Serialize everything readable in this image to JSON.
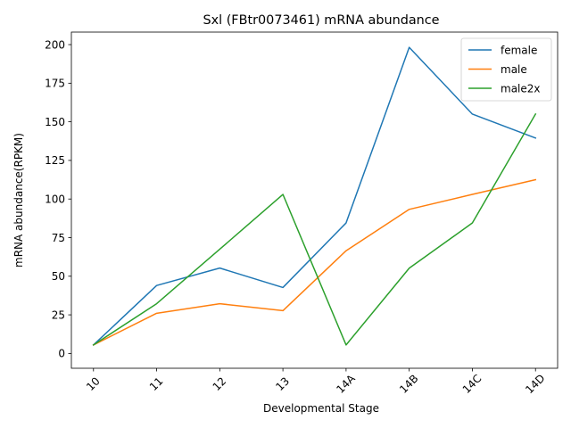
{
  "chart_data": {
    "type": "line",
    "title": "Sxl (FBtr0073461) mRNA abundance",
    "xlabel": "Developmental Stage",
    "ylabel": "mRNA abundance(RPKM)",
    "categories": [
      "10",
      "11",
      "12",
      "13",
      "14A",
      "14B",
      "14C",
      "14D"
    ],
    "ylim": [
      -9.6,
      208.1
    ],
    "yticks": [
      0,
      25,
      50,
      75,
      100,
      125,
      150,
      175,
      200
    ],
    "grid": false,
    "legend_position": "top-right",
    "series": [
      {
        "name": "female",
        "color": "#1f77b4",
        "values": [
          5.5,
          44,
          55.3,
          42.7,
          84.5,
          198.2,
          155,
          139.5
        ]
      },
      {
        "name": "male",
        "color": "#ff7f0e",
        "values": [
          5.5,
          26,
          32.2,
          27.7,
          66.5,
          93.3,
          103,
          112.5
        ]
      },
      {
        "name": "male2x",
        "color": "#2ca02c",
        "values": [
          5.5,
          32.2,
          67.5,
          103,
          5.5,
          55.2,
          84.5,
          155
        ]
      }
    ]
  }
}
